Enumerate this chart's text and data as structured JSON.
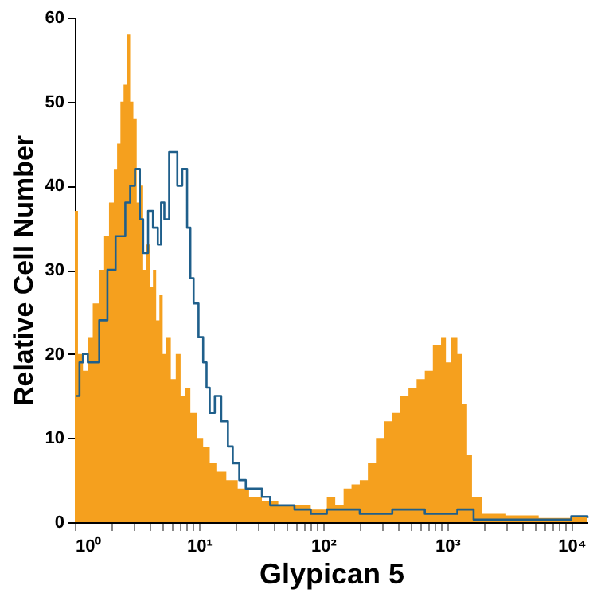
{
  "chart_data": {
    "type": "area",
    "xlabel": "Glypican 5",
    "ylabel": "Relative Cell Number",
    "log": "x",
    "xlim": [
      1,
      13430
    ],
    "ylim": [
      0,
      60
    ],
    "xticks": [
      {
        "value": 1,
        "label": "10⁰"
      },
      {
        "value": 2,
        "label": null
      },
      {
        "value": 3,
        "label": null
      },
      {
        "value": 4,
        "label": null
      },
      {
        "value": 5,
        "label": null
      },
      {
        "value": 6,
        "label": null
      },
      {
        "value": 7,
        "label": null
      },
      {
        "value": 8,
        "label": null
      },
      {
        "value": 9,
        "label": null
      },
      {
        "value": 10,
        "label": "10¹"
      },
      {
        "value": 20,
        "label": null
      },
      {
        "value": 30,
        "label": null
      },
      {
        "value": 40,
        "label": null
      },
      {
        "value": 50,
        "label": null
      },
      {
        "value": 60,
        "label": null
      },
      {
        "value": 70,
        "label": null
      },
      {
        "value": 80,
        "label": null
      },
      {
        "value": 90,
        "label": null
      },
      {
        "value": 100,
        "label": "10²"
      },
      {
        "value": 200,
        "label": null
      },
      {
        "value": 300,
        "label": null
      },
      {
        "value": 400,
        "label": null
      },
      {
        "value": 500,
        "label": null
      },
      {
        "value": 600,
        "label": null
      },
      {
        "value": 700,
        "label": null
      },
      {
        "value": 800,
        "label": null
      },
      {
        "value": 900,
        "label": null
      },
      {
        "value": 1000,
        "label": "10³"
      },
      {
        "value": 2000,
        "label": null
      },
      {
        "value": 3000,
        "label": null
      },
      {
        "value": 4000,
        "label": null
      },
      {
        "value": 5000,
        "label": null
      },
      {
        "value": 6000,
        "label": null
      },
      {
        "value": 7000,
        "label": null
      },
      {
        "value": 8000,
        "label": null
      },
      {
        "value": 9000,
        "label": null
      },
      {
        "value": 10000,
        "label": "10⁴"
      }
    ],
    "yticks": [
      0,
      10,
      20,
      30,
      40,
      50,
      60
    ],
    "grid": false,
    "legend": false,
    "series": [
      {
        "type": "area",
        "color": "#f5a01e",
        "x": [
          1,
          1.06,
          1.163,
          1.273,
          1.394,
          1.573,
          1.722,
          1.885,
          2.06,
          2.19,
          2.33,
          2.47,
          2.63,
          2.79,
          2.96,
          3.15,
          3.34,
          3.55,
          3.77,
          4.01,
          4.26,
          4.52,
          4.8,
          5.1,
          5.42,
          5.93,
          6.5,
          7.11,
          7.78,
          8.52,
          9.61,
          10.8,
          12.2,
          13.8,
          16.6,
          20.5,
          25.3,
          32.1,
          43.5,
          58.7,
          79.4,
          107,
          125,
          146,
          169,
          197,
          229,
          266,
          309,
          360,
          418,
          486,
          565,
          658,
          764,
          889,
          973,
          1066,
          1203,
          1316,
          1442,
          1578,
          1891,
          2974,
          5433,
          9940,
          13430
        ],
        "values": [
          37,
          20,
          18,
          22,
          26,
          30,
          34,
          38,
          42,
          45,
          50,
          52,
          58,
          50,
          48,
          38,
          40,
          30,
          33,
          28,
          30,
          24,
          27,
          20,
          22,
          17,
          20,
          15,
          16,
          13,
          10,
          9,
          7,
          6,
          5,
          4,
          3,
          2.5,
          2,
          2,
          1.5,
          3,
          2,
          4,
          4.5,
          5,
          7,
          10,
          12,
          13,
          15,
          16,
          17,
          18,
          21,
          22,
          19,
          22,
          20,
          14,
          8,
          3,
          1,
          0.8,
          0.5,
          0.6,
          0.5
        ]
      },
      {
        "type": "step",
        "color": "#1f5f8b",
        "x": [
          1.03,
          1.09,
          1.163,
          1.273,
          1.573,
          1.83,
          2.13,
          2.55,
          2.79,
          3.05,
          3.34,
          3.55,
          3.89,
          4.26,
          4.66,
          4.95,
          5.26,
          5.75,
          6.3,
          6.69,
          7.33,
          8.02,
          8.52,
          9.05,
          9.91,
          10.8,
          11.5,
          12.2,
          13.4,
          15.1,
          17.1,
          18.7,
          21.1,
          23.8,
          27.7,
          32.1,
          37.4,
          43.5,
          58.7,
          79.4,
          107,
          197,
          360,
          658,
          1203,
          1626,
          5433,
          9940,
          13430
        ],
        "values": [
          15,
          19,
          20,
          19,
          24,
          30,
          34,
          38,
          40,
          42,
          36,
          32,
          37,
          35,
          33,
          38,
          36,
          44,
          44,
          40,
          42,
          35,
          29,
          26,
          22,
          19,
          16,
          13,
          15,
          12,
          9,
          7,
          5,
          4,
          4,
          3,
          2,
          2,
          1.5,
          1,
          1.5,
          1,
          1.5,
          1,
          1.5,
          0.3,
          0.3,
          0.7,
          0.5
        ]
      }
    ]
  }
}
